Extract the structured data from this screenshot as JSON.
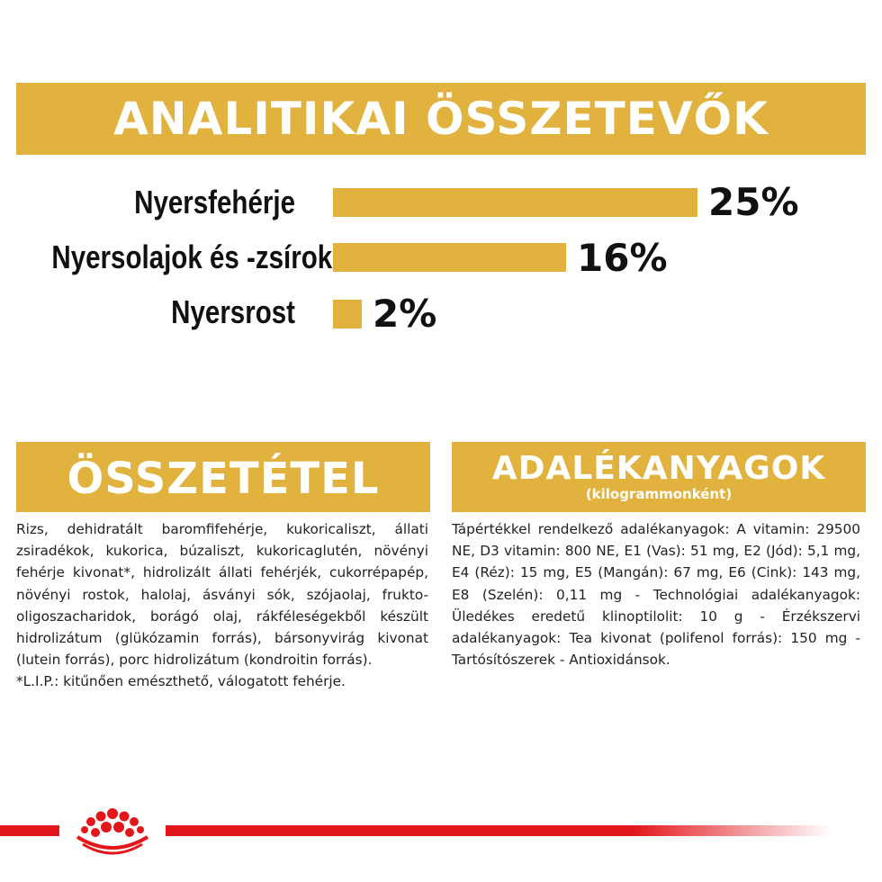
{
  "analitikai": {
    "title": "ANALITIKAI ÖSSZETEVŐK",
    "rows": [
      {
        "label": "Nyersfehérje",
        "value_text": "25%",
        "value": 25
      },
      {
        "label": "Nyersolajok és -zsírok",
        "value_text": "16%",
        "value": 16
      },
      {
        "label": "Nyersrost",
        "value_text": "2%",
        "value": 2
      }
    ]
  },
  "osszetetel": {
    "title": "ÖSSZETÉTEL",
    "text": "Rizs, dehidratált baromfifehérje, kukoricaliszt, állati zsiradékok, kukorica, búzaliszt, kukoricaglutén, növényi fehérje kivonat*, hidrolizált állati fehérjék, cukorrépapép, növényi rostok, halolaj, ásványi sók, szójaolaj, frukto-oligoszacharidok, borágó olaj, rákféleségekből készült hidrolizátum (glükózamin forrás), bársonyvirág kivonat (lutein forrás), porc hidrolizátum (kondroitin forrás).",
    "footnote": "*L.I.P.: kitűnően emészthető, válogatott fehérje."
  },
  "adalekanyagok": {
    "title": "ADALÉKANYAGOK",
    "subtitle": "(kilogrammonként)",
    "text": "Tápértékkel rendelkező adalékanyagok: A vitamin: 29500 NE, D3 vitamin: 800 NE, E1 (Vas): 51 mg, E2 (Jód): 5,1 mg, E4 (Réz): 15 mg, E5 (Mangán): 67 mg, E6 (Cink): 143 mg, E8 (Szelén): 0,11 mg - Technológiai adalékanyagok: Üledékes eredetű klinoptilolit: 10 g - Érzékszervi adalékanyagok: Tea kivonat (polifenol forrás): 150 mg - Tartósítószerek - Antioxidánsok."
  },
  "colors": {
    "accent": "#e1b23e",
    "brand_red": "#e2161b",
    "text": "#222222"
  },
  "footer": {
    "logo_icon": "royal-canin-crown-icon"
  }
}
